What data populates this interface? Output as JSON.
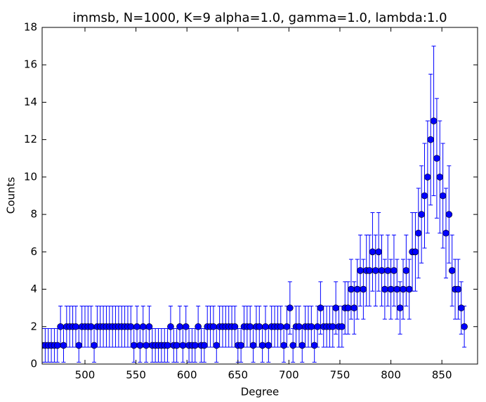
{
  "chart_data": {
    "type": "errorbar",
    "title": "immsb, N=1000, K=9 alpha=1.0, gamma=1.0, lambda:1.0",
    "xlabel": "Degree",
    "ylabel": "Counts",
    "color": "#0000ff",
    "xlim": [
      458,
      885
    ],
    "xticks": [
      500,
      550,
      600,
      650,
      700,
      750,
      800,
      850
    ],
    "ylim": [
      0,
      18
    ],
    "yticks": [
      0,
      2,
      4,
      6,
      8,
      10,
      12,
      14,
      16,
      18
    ],
    "x": [
      458,
      461,
      464,
      467,
      470,
      473,
      476,
      479,
      482,
      485,
      488,
      491,
      494,
      497,
      500,
      503,
      506,
      509,
      512,
      515,
      518,
      521,
      524,
      527,
      530,
      533,
      536,
      539,
      542,
      545,
      548,
      551,
      554,
      557,
      560,
      563,
      566,
      569,
      572,
      575,
      578,
      581,
      584,
      587,
      590,
      593,
      596,
      599,
      602,
      605,
      608,
      611,
      614,
      617,
      620,
      623,
      626,
      629,
      632,
      635,
      638,
      641,
      644,
      647,
      650,
      653,
      656,
      659,
      662,
      665,
      668,
      671,
      674,
      677,
      680,
      683,
      686,
      689,
      692,
      695,
      698,
      701,
      704,
      707,
      710,
      713,
      716,
      719,
      722,
      725,
      728,
      731,
      734,
      737,
      740,
      743,
      746,
      749,
      752,
      755,
      758,
      761,
      764,
      767,
      770,
      773,
      776,
      779,
      782,
      785,
      788,
      791,
      794,
      797,
      800,
      803,
      806,
      809,
      812,
      815,
      818,
      821,
      824,
      827,
      830,
      833,
      836,
      839,
      842,
      845,
      848,
      851,
      854,
      857,
      860,
      863,
      866,
      869,
      872
    ],
    "values": [
      1,
      1,
      1,
      1,
      1,
      1,
      2,
      1,
      2,
      2,
      2,
      2,
      1,
      2,
      2,
      2,
      2,
      1,
      2,
      2,
      2,
      2,
      2,
      2,
      2,
      2,
      2,
      2,
      2,
      2,
      1,
      2,
      1,
      2,
      1,
      2,
      1,
      1,
      1,
      1,
      1,
      1,
      2,
      1,
      1,
      2,
      1,
      2,
      1,
      1,
      1,
      2,
      1,
      1,
      2,
      2,
      2,
      1,
      2,
      2,
      2,
      2,
      2,
      2,
      1,
      1,
      2,
      2,
      2,
      1,
      2,
      2,
      1,
      2,
      1,
      2,
      2,
      2,
      2,
      1,
      2,
      3,
      1,
      2,
      2,
      1,
      2,
      2,
      2,
      1,
      2,
      3,
      2,
      2,
      2,
      2,
      3,
      2,
      2,
      3,
      3,
      4,
      3,
      4,
      5,
      4,
      5,
      5,
      6,
      5,
      6,
      5,
      4,
      5,
      4,
      5,
      4,
      3,
      4,
      5,
      4,
      6,
      6,
      7,
      8,
      9,
      10,
      12,
      13,
      11,
      10,
      9,
      7,
      8,
      5,
      4,
      4,
      3,
      2
    ],
    "errors": [
      0.9,
      0.9,
      0.9,
      0.9,
      0.9,
      0.9,
      1.1,
      0.9,
      1.1,
      1.1,
      1.1,
      1.1,
      0.9,
      1.1,
      1.1,
      1.1,
      1.1,
      0.9,
      1.1,
      1.1,
      1.1,
      1.1,
      1.1,
      1.1,
      1.1,
      1.1,
      1.1,
      1.1,
      1.1,
      1.1,
      0.9,
      1.1,
      0.9,
      1.1,
      0.9,
      1.1,
      0.9,
      0.9,
      0.9,
      0.9,
      0.9,
      0.9,
      1.1,
      0.9,
      0.9,
      1.1,
      0.9,
      1.1,
      0.9,
      0.9,
      0.9,
      1.1,
      0.9,
      0.9,
      1.1,
      1.1,
      1.1,
      0.9,
      1.1,
      1.1,
      1.1,
      1.1,
      1.1,
      1.1,
      0.9,
      0.9,
      1.1,
      1.1,
      1.1,
      0.9,
      1.1,
      1.1,
      0.9,
      1.1,
      0.9,
      1.1,
      1.1,
      1.1,
      1.1,
      0.9,
      1.1,
      1.4,
      0.9,
      1.1,
      1.1,
      0.9,
      1.1,
      1.1,
      1.1,
      0.9,
      1.1,
      1.4,
      1.1,
      1.1,
      1.1,
      1.1,
      1.4,
      1.1,
      1.1,
      1.4,
      1.4,
      1.6,
      1.4,
      1.6,
      1.9,
      1.6,
      1.9,
      1.9,
      2.1,
      1.9,
      2.1,
      1.9,
      1.6,
      1.9,
      1.6,
      1.9,
      1.6,
      1.4,
      1.6,
      1.9,
      1.6,
      2.1,
      2.1,
      2.4,
      2.6,
      2.8,
      3.0,
      3.5,
      4.0,
      3.2,
      3.0,
      2.8,
      2.4,
      2.6,
      1.9,
      1.6,
      1.6,
      1.4,
      1.1
    ]
  }
}
